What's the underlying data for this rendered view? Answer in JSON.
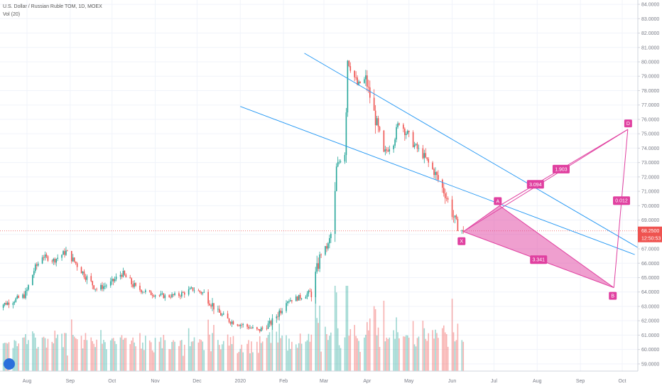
{
  "legend": {
    "title": "U.S. Dollar / Russian Ruble TOM, 1D, MOEX",
    "indicator": "Vol (20)"
  },
  "chart_data": {
    "type": "candlestick",
    "y_axis": {
      "range": [
        58.5,
        84.3
      ],
      "ticks": [
        "84.0000",
        "83.0000",
        "82.0000",
        "81.0000",
        "80.0000",
        "79.0000",
        "78.0000",
        "77.0000",
        "76.0000",
        "75.0000",
        "74.0000",
        "73.0000",
        "72.0000",
        "71.0000",
        "70.0000",
        "69.0000",
        "68.0000",
        "67.0000",
        "66.0000",
        "65.0000",
        "64.0000",
        "63.0000",
        "62.0000",
        "61.0000",
        "60.0000",
        "59.0000"
      ]
    },
    "x_axis": {
      "ticks": [
        {
          "label": "Aug",
          "date": "2019-08-01"
        },
        {
          "label": "Sep",
          "date": "2019-09-01"
        },
        {
          "label": "Oct",
          "date": "2019-10-01"
        },
        {
          "label": "Nov",
          "date": "2019-11-01"
        },
        {
          "label": "Dec",
          "date": "2019-12-01"
        },
        {
          "label": "2020",
          "date": "2020-01-01"
        },
        {
          "label": "Feb",
          "date": "2020-02-01"
        },
        {
          "label": "Mar",
          "date": "2020-03-01"
        },
        {
          "label": "Apr",
          "date": "2020-04-01"
        },
        {
          "label": "May",
          "date": "2020-05-01"
        },
        {
          "label": "Jun",
          "date": "2020-06-01"
        },
        {
          "label": "Jul",
          "date": "2020-07-01"
        },
        {
          "label": "Aug",
          "date": "2020-08-01"
        },
        {
          "label": "Sep",
          "date": "2020-09-01"
        },
        {
          "label": "Oct",
          "date": "2020-10-01"
        }
      ]
    },
    "price_path": [
      [
        "2019-07-10",
        63.0
      ],
      [
        "2019-07-20",
        63.3
      ],
      [
        "2019-07-31",
        63.8
      ],
      [
        "2019-08-06",
        65.5
      ],
      [
        "2019-08-12",
        66.5
      ],
      [
        "2019-08-20",
        66.2
      ],
      [
        "2019-08-29",
        66.8
      ],
      [
        "2019-09-05",
        66.0
      ],
      [
        "2019-09-12",
        65.1
      ],
      [
        "2019-09-20",
        64.2
      ],
      [
        "2019-09-30",
        64.6
      ],
      [
        "2019-10-08",
        65.3
      ],
      [
        "2019-10-18",
        64.3
      ],
      [
        "2019-10-28",
        63.9
      ],
      [
        "2019-11-08",
        63.7
      ],
      [
        "2019-11-18",
        63.8
      ],
      [
        "2019-11-28",
        64.2
      ],
      [
        "2019-12-06",
        63.9
      ],
      [
        "2019-12-16",
        62.6
      ],
      [
        "2019-12-24",
        62.0
      ],
      [
        "2020-01-06",
        61.6
      ],
      [
        "2020-01-14",
        61.3
      ],
      [
        "2020-01-24",
        61.9
      ],
      [
        "2020-02-03",
        63.4
      ],
      [
        "2020-02-12",
        63.6
      ],
      [
        "2020-02-21",
        64.0
      ],
      [
        "2020-02-28",
        66.7
      ],
      [
        "2020-03-04",
        67.2
      ],
      [
        "2020-03-08",
        68.8
      ],
      [
        "2020-03-10",
        72.6
      ],
      [
        "2020-03-16",
        74.0
      ],
      [
        "2020-03-18",
        80.2
      ],
      [
        "2020-03-25",
        78.4
      ],
      [
        "2020-03-31",
        78.8
      ],
      [
        "2020-04-06",
        76.4
      ],
      [
        "2020-04-13",
        73.6
      ],
      [
        "2020-04-20",
        74.5
      ],
      [
        "2020-04-24",
        75.9
      ],
      [
        "2020-05-04",
        74.3
      ],
      [
        "2020-05-12",
        73.4
      ],
      [
        "2020-05-20",
        72.2
      ],
      [
        "2020-05-28",
        70.6
      ],
      [
        "2020-06-05",
        68.4
      ],
      [
        "2020-06-09",
        68.25
      ]
    ],
    "volume_overlay": true,
    "current_price": {
      "label": "68.2500",
      "value": 68.25
    },
    "countdown": "12:50:53",
    "trendlines": [
      {
        "from": [
          "2020-02-16",
          80.6
        ],
        "to": [
          "2020-10-12",
          67.1
        ]
      },
      {
        "from": [
          "2020-01-01",
          76.9
        ],
        "to": [
          "2020-10-10",
          66.6
        ]
      }
    ],
    "harmonic_pattern": {
      "points": [
        {
          "label": "X",
          "date": "2020-06-09",
          "value": 68.2
        },
        {
          "label": "A",
          "date": "2020-07-05",
          "value": 70.0
        },
        {
          "label": "B",
          "date": "2020-09-25",
          "value": 64.3
        },
        {
          "label": "D",
          "date": "2020-10-05",
          "value": 75.3
        }
      ],
      "ratios": [
        "3.341",
        "3.094",
        "1.903",
        "0.012"
      ]
    }
  }
}
